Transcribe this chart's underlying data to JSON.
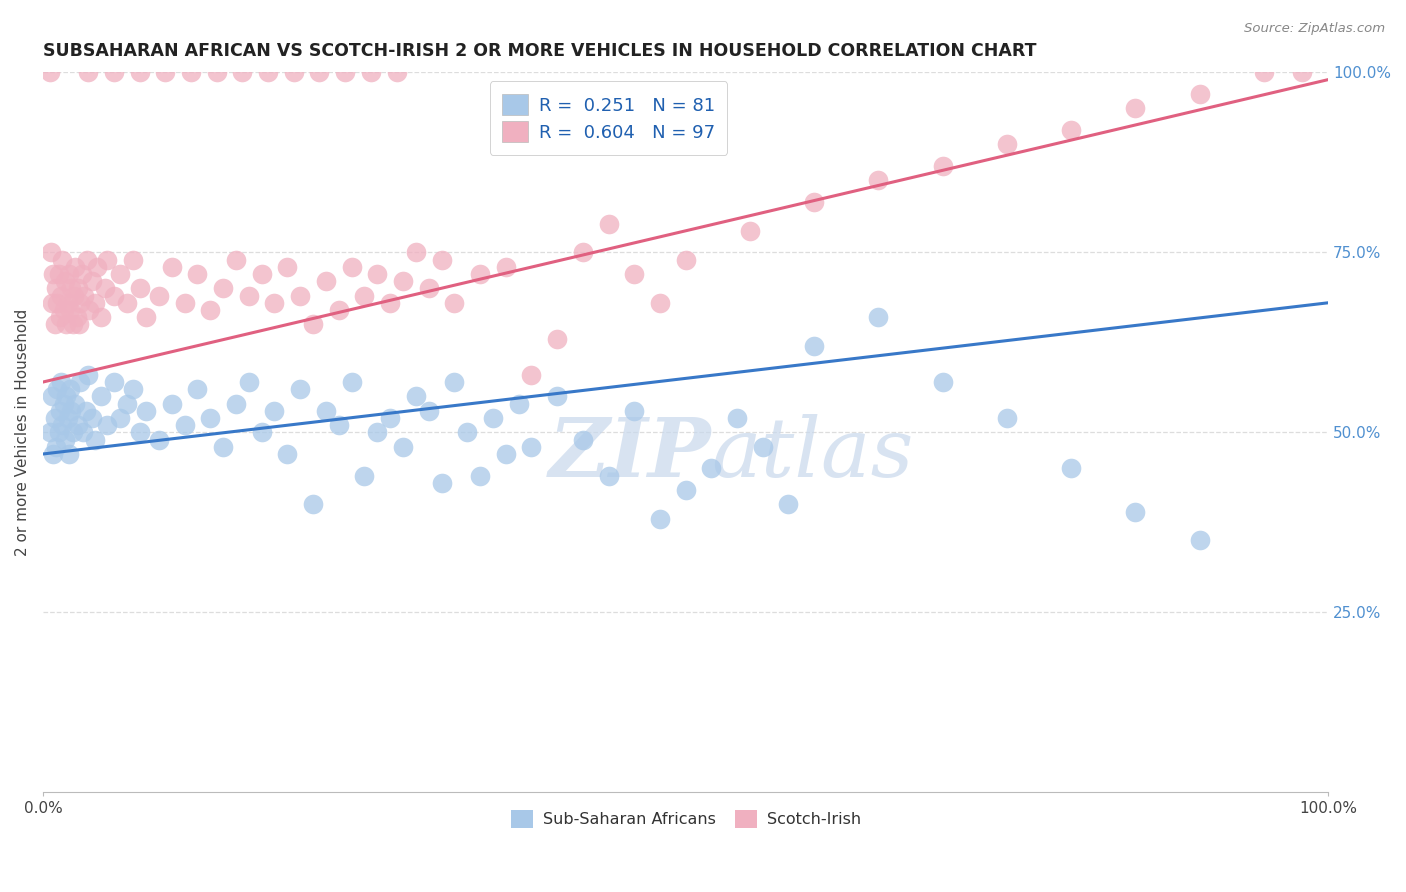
{
  "title": "SUBSAHARAN AFRICAN VS SCOTCH-IRISH 2 OR MORE VEHICLES IN HOUSEHOLD CORRELATION CHART",
  "source": "Source: ZipAtlas.com",
  "ylabel": "2 or more Vehicles in Household",
  "xlim": [
    0,
    100
  ],
  "ylim": [
    0,
    100
  ],
  "xticks": [
    0,
    20,
    40,
    60,
    80,
    100
  ],
  "yticks_right": [
    25,
    50,
    75,
    100
  ],
  "xticklabels": [
    "0.0%",
    "",
    "",
    "",
    "",
    "100.0%"
  ],
  "yticklabels_right": [
    "25.0%",
    "50.0%",
    "75.0%",
    "100.0%"
  ],
  "legend_r_blue": "0.251",
  "legend_n_blue": "81",
  "legend_r_pink": "0.604",
  "legend_n_pink": "97",
  "blue_color": "#A8C8E8",
  "pink_color": "#F0B0C0",
  "blue_line_color": "#3878C8",
  "pink_line_color": "#E06080",
  "watermark_color": "#C8D8EC",
  "background_color": "#FFFFFF",
  "grid_color": "#DDDDDD",
  "blue_regression_y0": 47.0,
  "blue_regression_y1": 68.0,
  "pink_regression_y0": 57.0,
  "pink_regression_y1": 99.0,
  "blue_x": [
    0.5,
    0.7,
    0.8,
    0.9,
    1.0,
    1.1,
    1.2,
    1.3,
    1.4,
    1.5,
    1.6,
    1.7,
    1.8,
    1.9,
    2.0,
    2.1,
    2.2,
    2.3,
    2.5,
    2.7,
    2.9,
    3.1,
    3.3,
    3.5,
    3.8,
    4.0,
    4.5,
    5.0,
    5.5,
    6.0,
    6.5,
    7.0,
    7.5,
    8.0,
    9.0,
    10.0,
    11.0,
    12.0,
    13.0,
    14.0,
    15.0,
    16.0,
    17.0,
    18.0,
    19.0,
    20.0,
    21.0,
    22.0,
    23.0,
    24.0,
    25.0,
    26.0,
    27.0,
    28.0,
    29.0,
    30.0,
    31.0,
    32.0,
    33.0,
    34.0,
    35.0,
    36.0,
    37.0,
    38.0,
    40.0,
    42.0,
    44.0,
    46.0,
    48.0,
    50.0,
    52.0,
    54.0,
    56.0,
    58.0,
    60.0,
    65.0,
    70.0,
    75.0,
    80.0,
    85.0,
    90.0
  ],
  "blue_y": [
    50,
    55,
    47,
    52,
    48,
    56,
    50,
    53,
    57,
    51,
    54,
    49,
    55,
    52,
    47,
    56,
    53,
    50,
    54,
    51,
    57,
    50,
    53,
    58,
    52,
    49,
    55,
    51,
    57,
    52,
    54,
    56,
    50,
    53,
    49,
    54,
    51,
    56,
    52,
    48,
    54,
    57,
    50,
    53,
    47,
    56,
    40,
    53,
    51,
    57,
    44,
    50,
    52,
    48,
    55,
    53,
    43,
    57,
    50,
    44,
    52,
    47,
    54,
    48,
    55,
    49,
    44,
    53,
    38,
    42,
    45,
    52,
    48,
    40,
    62,
    66,
    57,
    52,
    45,
    39,
    35
  ],
  "pink_x": [
    0.5,
    0.6,
    0.7,
    0.8,
    0.9,
    1.0,
    1.1,
    1.2,
    1.3,
    1.4,
    1.5,
    1.6,
    1.7,
    1.8,
    1.9,
    2.0,
    2.1,
    2.2,
    2.3,
    2.4,
    2.5,
    2.6,
    2.7,
    2.8,
    2.9,
    3.0,
    3.2,
    3.4,
    3.6,
    3.8,
    4.0,
    4.2,
    4.5,
    4.8,
    5.0,
    5.5,
    6.0,
    6.5,
    7.0,
    7.5,
    8.0,
    9.0,
    10.0,
    11.0,
    12.0,
    13.0,
    14.0,
    15.0,
    16.0,
    17.0,
    18.0,
    19.0,
    20.0,
    21.0,
    22.0,
    23.0,
    24.0,
    25.0,
    26.0,
    27.0,
    28.0,
    29.0,
    30.0,
    31.0,
    32.0,
    34.0,
    36.0,
    38.0,
    40.0,
    42.0,
    44.0,
    46.0,
    48.0,
    50.0,
    55.0,
    60.0,
    65.0,
    70.0,
    75.0,
    80.0,
    85.0,
    90.0,
    95.0,
    98.0,
    3.5,
    5.5,
    7.5,
    9.5,
    11.5,
    13.5,
    15.5,
    17.5,
    19.5,
    21.5,
    23.5,
    25.5,
    27.5
  ],
  "pink_y": [
    100,
    75,
    68,
    72,
    65,
    70,
    68,
    72,
    66,
    69,
    74,
    67,
    71,
    65,
    68,
    72,
    67,
    70,
    65,
    69,
    73,
    66,
    70,
    65,
    68,
    72,
    69,
    74,
    67,
    71,
    68,
    73,
    66,
    70,
    74,
    69,
    72,
    68,
    74,
    70,
    66,
    69,
    73,
    68,
    72,
    67,
    70,
    74,
    69,
    72,
    68,
    73,
    69,
    65,
    71,
    67,
    73,
    69,
    72,
    68,
    71,
    75,
    70,
    74,
    68,
    72,
    73,
    58,
    63,
    75,
    79,
    72,
    68,
    74,
    78,
    82,
    85,
    87,
    90,
    92,
    95,
    97,
    100,
    100,
    100,
    100,
    100,
    100,
    100,
    100,
    100,
    100,
    100,
    100,
    100,
    100,
    100
  ]
}
